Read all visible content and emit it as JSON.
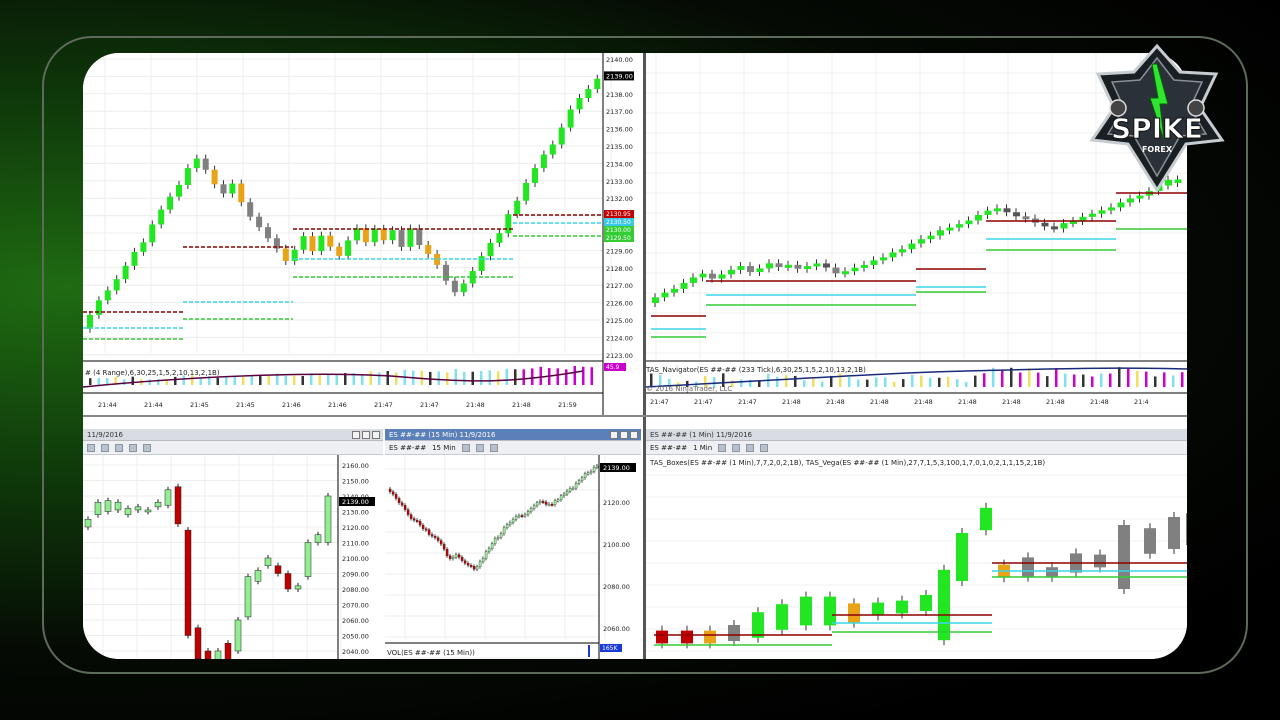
{
  "panels": {
    "top_left": {
      "indicator_label": "# (4 Range),6,30,25,1,5,2,10,13,2,1B)",
      "ind_value": "45.9",
      "time_labels": [
        "21:44",
        "21:44",
        "21:45",
        "21:45",
        "21:46",
        "21:46",
        "21:47",
        "21:47",
        "21:48",
        "21:48",
        "21:59"
      ],
      "price_labels": [
        "2140.00",
        "2139.00",
        "2138.00",
        "2137.00",
        "2136.00",
        "2135.00",
        "2134.00",
        "2133.00",
        "2132.00",
        "2131.00",
        "2130.00",
        "2129.00",
        "2128.00",
        "2127.00",
        "2126.00",
        "2125.00",
        "2124.00",
        "2123.00"
      ],
      "current_price": "2139.00",
      "level_labels": [
        "2130.95",
        "2130.50",
        "2130.00",
        "2129.50"
      ]
    },
    "top_right": {
      "indicator_label": "TAS_Navigator(ES ##-## (233 Tick),6,30,25,1,5,2,10,13,2,1B)",
      "copyright": "© 2016 NinjaTrader, LLC",
      "time_labels": [
        "21:47",
        "21:47",
        "21:47",
        "21:48",
        "21:48",
        "21:48",
        "21:48",
        "21:48",
        "21:48",
        "21:48",
        "21:48",
        "21:4"
      ]
    },
    "bottom_left": {
      "title": "11/9/2016",
      "price_labels": [
        "2160.00",
        "2150.00",
        "2140.00",
        "2130.00",
        "2120.00",
        "2110.00",
        "2100.00",
        "2090.00",
        "2080.00",
        "2070.00",
        "2060.00",
        "2050.00",
        "2040.00"
      ],
      "current_price": "2139.00"
    },
    "bottom_mid": {
      "title": "ES ##-## (15 Min)  11/9/2016",
      "instrument": "ES ##-##",
      "interval": "15 Min",
      "price_labels": [
        "2120.00",
        "2100.00",
        "2080.00",
        "2060.00",
        "2040.00"
      ],
      "current_price": "2139.00",
      "vol_label": "VOL(ES ##-## (15 Min))",
      "vol_value": "165K"
    },
    "bottom_right": {
      "title": "ES ##-## (1 Min)  11/9/2016",
      "instrument": "ES ##-##",
      "interval": "1 Min",
      "indicator_label": "TAS_Boxes(ES ##-## (1 Min),7,7,2,0,2,1B), TAS_Vega(ES ##-## (1 Min),27,7,1,5,3,100,1,7,0,1,0,2,1,1,15,2,1B)"
    }
  },
  "logo": {
    "text": "SPIKE",
    "subtext": "FOREX"
  },
  "colors": {
    "bull": "#22e622",
    "bear": "#808080",
    "doji": "#e8a317",
    "level_red": "#8b0000",
    "level_cyan": "#38d6e8",
    "level_green": "#33cc33",
    "bar_red": "#c00000",
    "bar_green": "#90ee90"
  }
}
